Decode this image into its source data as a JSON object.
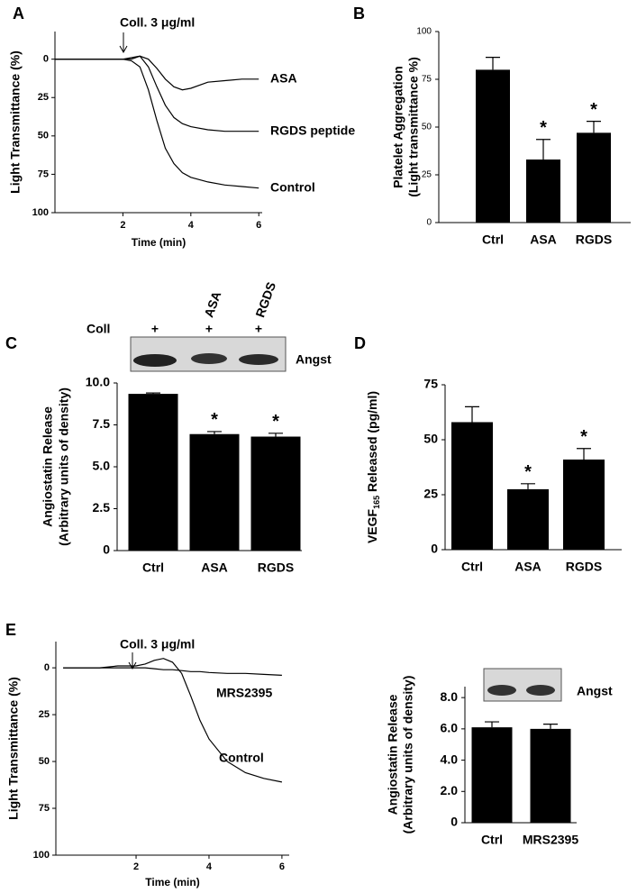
{
  "chart_data": [
    {
      "type": "line",
      "panel": "A",
      "annotation": "Coll. 3 μg/ml",
      "xlabel": "Time (min)",
      "ylabel": [
        "Light Transmittance (%)"
      ],
      "y_inverted": true,
      "xlim": [
        0,
        6.1
      ],
      "ylim": [
        -18,
        100
      ],
      "xticks": [
        2,
        4,
        6
      ],
      "yticks": [
        0,
        25,
        50,
        75,
        100
      ],
      "x": [
        0,
        0.5,
        1,
        1.5,
        2,
        2.25,
        2.5,
        2.75,
        3,
        3.25,
        3.5,
        3.75,
        4,
        4.5,
        5,
        5.5,
        6
      ],
      "series": [
        {
          "name": "ASA",
          "color": "#000000",
          "values": [
            0,
            0,
            0,
            0,
            0,
            -1,
            -2,
            0,
            6,
            13,
            18,
            20,
            19,
            15,
            14,
            13,
            13
          ]
        },
        {
          "name": "RGDS peptide",
          "color": "#000000",
          "values": [
            0,
            0,
            0,
            0,
            0,
            0,
            -2,
            5,
            18,
            30,
            38,
            42,
            44,
            46,
            47,
            47,
            47
          ]
        },
        {
          "name": "Control",
          "color": "#000000",
          "values": [
            0,
            0,
            0,
            0,
            0,
            1,
            5,
            20,
            40,
            58,
            68,
            74,
            77,
            80,
            82,
            83,
            84
          ]
        }
      ]
    },
    {
      "type": "bar",
      "panel": "B",
      "ylabel": [
        "Platelet  Aggregation",
        "(Light transmittance %)"
      ],
      "categories": [
        "Ctrl",
        "ASA",
        "RGDS"
      ],
      "values": [
        80,
        33,
        47
      ],
      "errors": [
        6.5,
        10.5,
        6
      ],
      "significance": [
        null,
        "*",
        "*"
      ],
      "color": "#000000",
      "ylim": [
        0,
        100
      ],
      "yticks": [
        0,
        25,
        50,
        75,
        100
      ]
    },
    {
      "type": "bar",
      "panel": "C",
      "ylabel": [
        "Angiostatin Release",
        "(Arbitrary units of density)"
      ],
      "categories": [
        "Ctrl",
        "ASA",
        "RGDS"
      ],
      "values": [
        9.35,
        6.95,
        6.8
      ],
      "errors": [
        0.05,
        0.15,
        0.2
      ],
      "significance": [
        null,
        "*",
        "*"
      ],
      "color": "#000000",
      "ylim": [
        0,
        10
      ],
      "yticks": [
        0,
        2.5,
        {
          "value": 5,
          "label": "5.0"
        },
        7.5,
        {
          "value": 10,
          "label": "10.0"
        }
      ],
      "blot": {
        "row_label": "Coll",
        "row_marks": [
          "+",
          "+",
          "+"
        ],
        "lane_labels": [
          null,
          "ASA",
          "RGDS"
        ],
        "band_label": "Angst"
      }
    },
    {
      "type": "bar",
      "panel": "D",
      "ylabel_parts": {
        "text": "VEGF",
        "subscript": "165",
        "suffix": " Released (pg/ml)"
      },
      "categories": [
        "Ctrl",
        "ASA",
        "RGDS"
      ],
      "values": [
        58,
        27.5,
        41
      ],
      "errors": [
        7,
        2.5,
        5
      ],
      "significance": [
        null,
        "*",
        "*"
      ],
      "color": "#000000",
      "ylim": [
        0,
        75
      ],
      "yticks": [
        0,
        25,
        50,
        75
      ]
    },
    {
      "type": "line",
      "panel": "E",
      "annotation": "Coll. 3 μg/ml",
      "xlabel": "Time (min)",
      "ylabel": [
        "Light Transmittance (%)"
      ],
      "y_inverted": true,
      "xlim": [
        -0.2,
        6.2
      ],
      "ylim": [
        -14,
        100
      ],
      "xticks": [
        2,
        4,
        6
      ],
      "yticks": [
        0,
        25,
        50,
        75,
        100
      ],
      "x": [
        0,
        0.5,
        1,
        1.5,
        2,
        2.25,
        2.5,
        2.75,
        3,
        3.25,
        3.5,
        3.75,
        4,
        4.5,
        5,
        5.5,
        6
      ],
      "series": [
        {
          "name": "MRS2395",
          "color": "#000000",
          "values": [
            0,
            0,
            0,
            0,
            0,
            0,
            0.5,
            1,
            1,
            1.5,
            2,
            2,
            2.5,
            3,
            3,
            3.5,
            4
          ]
        },
        {
          "name": "Control",
          "color": "#000000",
          "values": [
            0,
            0,
            0,
            -1,
            -1,
            -2,
            -4,
            -5,
            -3,
            3,
            15,
            28,
            38,
            50,
            56,
            59,
            61
          ]
        }
      ]
    },
    {
      "type": "bar",
      "ylabel": [
        "Angiostatin Release",
        "(Arbitrary units of density)"
      ],
      "categories": [
        "Ctrl",
        "MRS2395"
      ],
      "values": [
        6.1,
        6.0
      ],
      "errors": [
        0.35,
        0.3
      ],
      "color": "#000000",
      "ylim": [
        0,
        8.7
      ],
      "yticks": [
        0,
        {
          "value": 2,
          "label": "2.0"
        },
        {
          "value": 4,
          "label": "4.0"
        },
        {
          "value": 6,
          "label": "6.0"
        },
        {
          "value": 8,
          "label": "8.0"
        }
      ],
      "blot": {
        "band_label": "Angst"
      }
    }
  ]
}
